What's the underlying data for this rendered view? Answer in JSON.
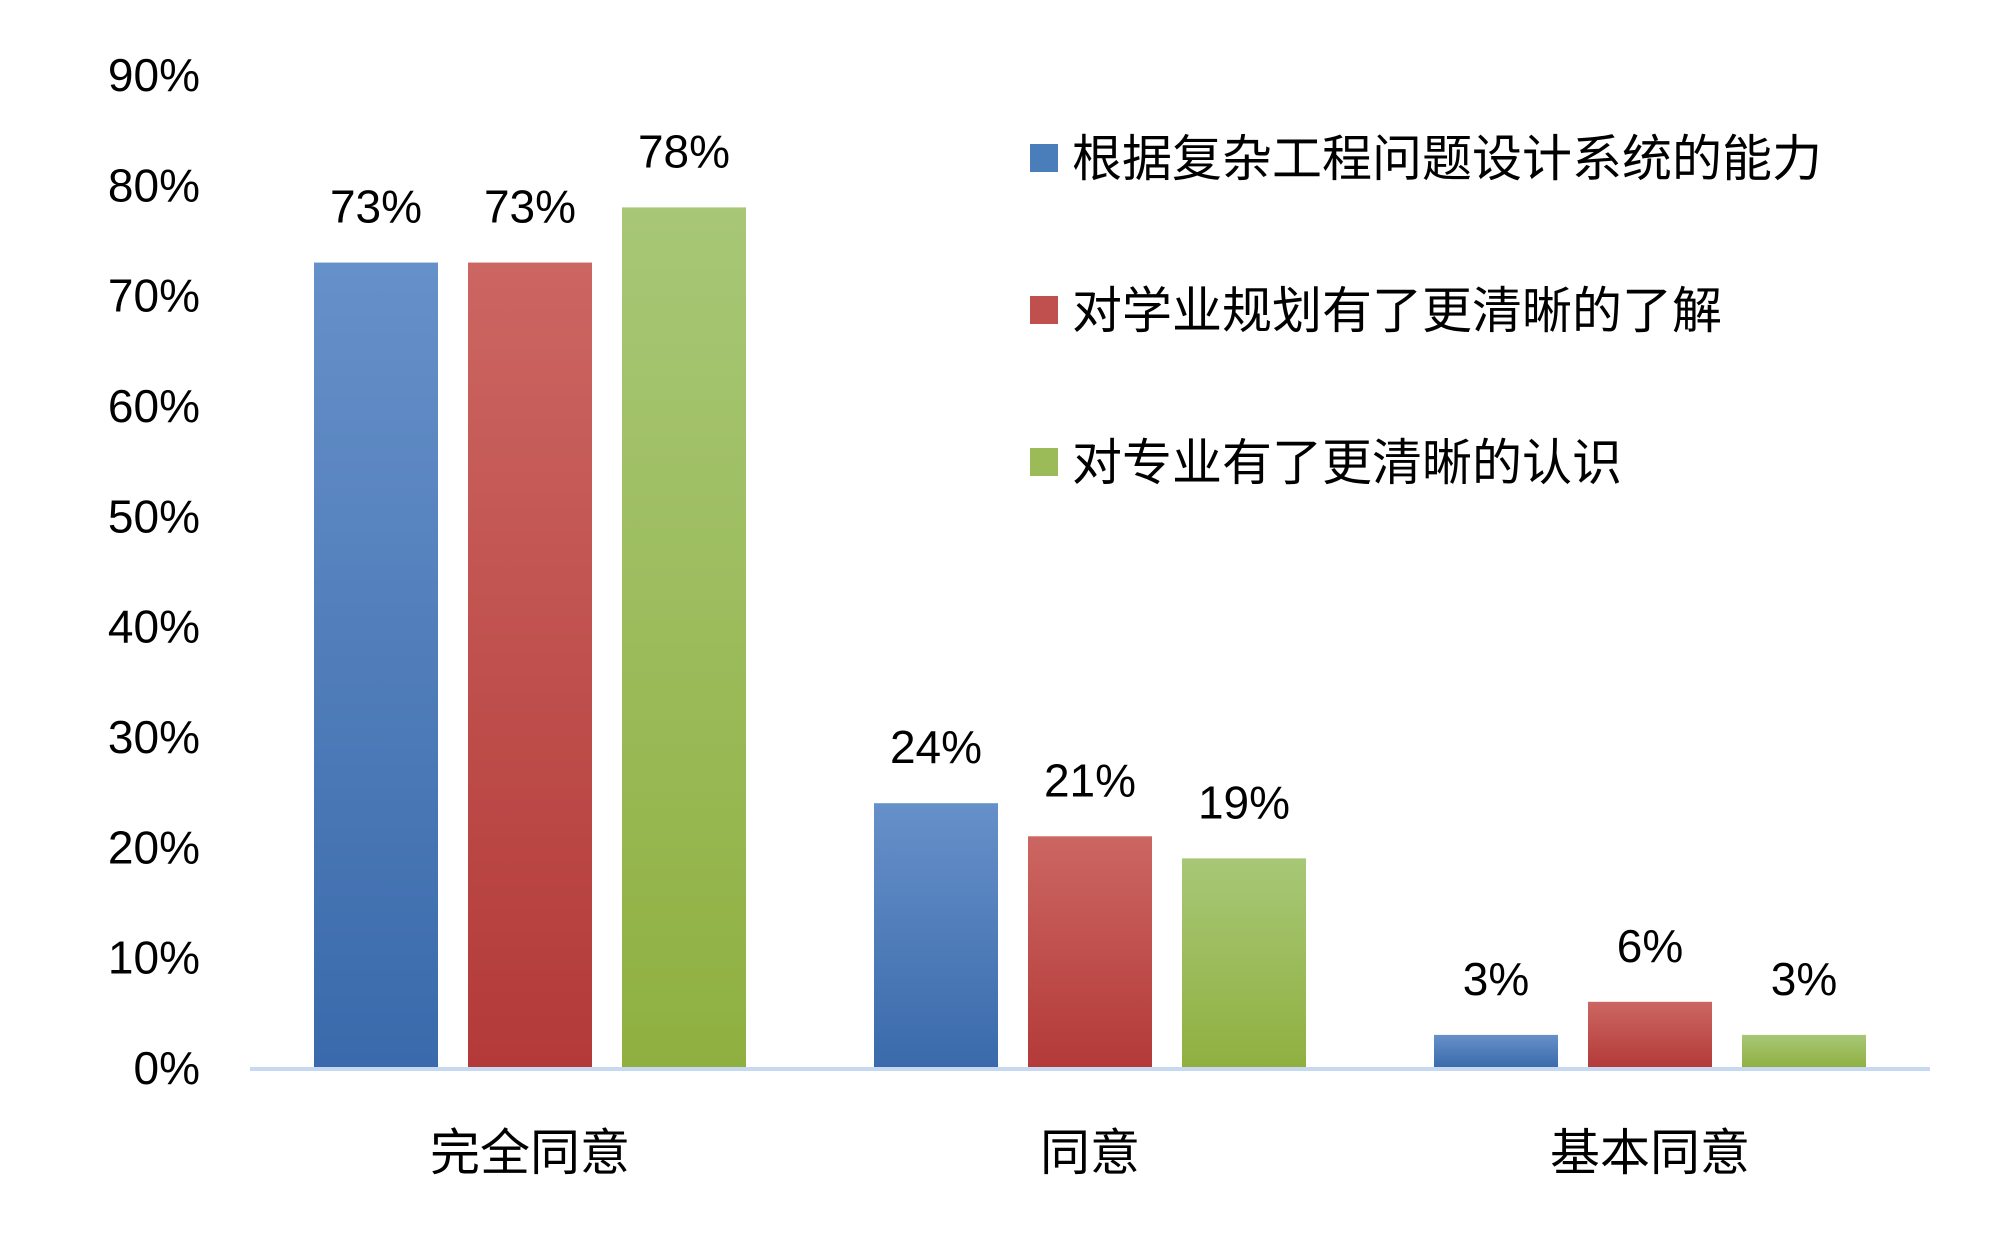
{
  "chart_data": {
    "type": "bar",
    "title": "",
    "xlabel": "",
    "ylabel": "",
    "categories": [
      "完全同意",
      "同意",
      "基本同意"
    ],
    "series": [
      {
        "name": "根据复杂工程问题设计系统的能力",
        "values": [
          73,
          24,
          3
        ],
        "labels": [
          "73%",
          "24%",
          "3%"
        ],
        "color": "#4a7ebb",
        "color_light": "#6690c9",
        "color_dark": "#3a6aab"
      },
      {
        "name": "对学业规划有了更清晰的了解",
        "values": [
          73,
          21,
          6
        ],
        "labels": [
          "73%",
          "21%",
          "6%"
        ],
        "color": "#c0504d",
        "color_light": "#cc6662",
        "color_dark": "#b33a38"
      },
      {
        "name": "对专业有了更清晰的认识",
        "values": [
          78,
          19,
          3
        ],
        "labels": [
          "78%",
          "19%",
          "3%"
        ],
        "color": "#9bbb59",
        "color_light": "#a8c777",
        "color_dark": "#8fb040"
      }
    ],
    "ylim": [
      0,
      90
    ],
    "yticks": [
      0,
      10,
      20,
      30,
      40,
      50,
      60,
      70,
      80,
      90
    ],
    "ytick_labels": [
      "0%",
      "10%",
      "20%",
      "30%",
      "40%",
      "50%",
      "60%",
      "70%",
      "80%",
      "90%"
    ],
    "grid": false,
    "legend_position": "top-right",
    "axis_color": "#c6d9f1"
  }
}
